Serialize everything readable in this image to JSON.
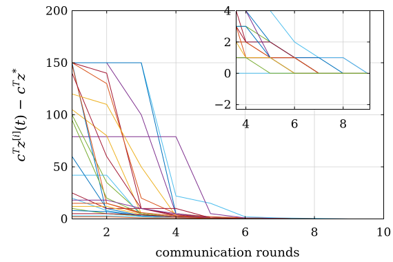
{
  "chart_data": [
    {
      "type": "line",
      "panel": "main",
      "xlabel": "communication rounds",
      "ylabel": "c^T z^[i](t) − c^T z^*",
      "xlim": [
        1,
        10
      ],
      "ylim": [
        0,
        200
      ],
      "x_ticks": [
        2,
        4,
        6,
        8,
        10
      ],
      "y_ticks": [
        0,
        50,
        100,
        150,
        200
      ],
      "x_tick_labels": [
        "2",
        "4",
        "6",
        "8",
        "10"
      ],
      "y_tick_labels": [
        "0",
        "50",
        "100",
        "150",
        "200"
      ],
      "grid": true,
      "series": [
        {
          "color": "#7e2f8e",
          "x": [
            1,
            2,
            3,
            4,
            5,
            6,
            7,
            8,
            9,
            10
          ],
          "y": [
            150,
            150,
            100,
            5,
            1,
            0.5,
            0.3,
            0.1,
            0,
            0
          ]
        },
        {
          "color": "#4dbeee",
          "x": [
            1,
            2,
            3,
            4,
            5,
            6,
            7,
            8,
            9,
            10
          ],
          "y": [
            150,
            150,
            150,
            22,
            15,
            2,
            1,
            0.5,
            0,
            0
          ]
        },
        {
          "color": "#0072bd",
          "x": [
            1,
            2,
            3,
            4,
            5,
            6,
            7,
            8,
            9,
            10
          ],
          "y": [
            150,
            150,
            150,
            5,
            2,
            1,
            0.5,
            0,
            0,
            0
          ]
        },
        {
          "color": "#a2142f",
          "x": [
            1,
            2,
            3,
            4,
            5,
            6,
            7,
            8,
            9,
            10
          ],
          "y": [
            150,
            140,
            10,
            3,
            2,
            1,
            0.5,
            0,
            0,
            0
          ]
        },
        {
          "color": "#d95319",
          "x": [
            1,
            2,
            3,
            4,
            5,
            6,
            7,
            8,
            9,
            10
          ],
          "y": [
            150,
            130,
            20,
            5,
            2,
            1,
            0.5,
            0,
            0,
            0
          ]
        },
        {
          "color": "#7e2f8e",
          "x": [
            1,
            2,
            3,
            4,
            5,
            6,
            7,
            8,
            9,
            10
          ],
          "y": [
            79,
            79,
            79,
            79,
            5,
            1,
            0.5,
            0,
            0,
            0
          ]
        },
        {
          "color": "#edb120",
          "x": [
            1,
            2,
            3,
            4,
            5,
            6,
            7,
            8,
            9,
            10
          ],
          "y": [
            105,
            80,
            5,
            2,
            1,
            0.5,
            0.2,
            0,
            0,
            0
          ]
        },
        {
          "color": "#77ac30",
          "x": [
            1,
            2,
            3,
            4,
            5,
            6,
            7,
            8,
            9,
            10
          ],
          "y": [
            100,
            35,
            5,
            2,
            1,
            0.5,
            0.2,
            0,
            0,
            0
          ]
        },
        {
          "color": "#4dbeee",
          "x": [
            1,
            2,
            3,
            4,
            5,
            6,
            7,
            8,
            9,
            10
          ],
          "y": [
            42,
            42,
            3,
            2,
            1,
            0.5,
            0.2,
            0,
            0,
            0
          ]
        },
        {
          "color": "#0072bd",
          "x": [
            1,
            2,
            3,
            4,
            5,
            6,
            7,
            8,
            9,
            10
          ],
          "y": [
            150,
            5,
            3,
            2,
            1,
            0.5,
            0.2,
            0,
            0,
            0
          ]
        },
        {
          "color": "#d95319",
          "x": [
            1,
            2,
            3,
            4,
            5,
            6,
            7,
            8,
            9,
            10
          ],
          "y": [
            148,
            15,
            5,
            2,
            1,
            0.5,
            0.2,
            0,
            0,
            0
          ]
        },
        {
          "color": "#a2142f",
          "x": [
            1,
            2,
            3,
            4,
            5,
            6,
            7,
            8,
            9,
            10
          ],
          "y": [
            140,
            60,
            10,
            4,
            1,
            0.5,
            0.2,
            0,
            0,
            0
          ]
        },
        {
          "color": "#edb120",
          "x": [
            1,
            2,
            3,
            4,
            5,
            6,
            7,
            8,
            9,
            10
          ],
          "y": [
            120,
            110,
            50,
            3,
            1,
            0.5,
            0.2,
            0,
            0,
            0
          ]
        },
        {
          "color": "#77ac30",
          "x": [
            1,
            2,
            3,
            4,
            5,
            6,
            7,
            8,
            9,
            10
          ],
          "y": [
            95,
            20,
            5,
            2,
            1,
            0.5,
            0.2,
            0,
            0,
            0
          ]
        },
        {
          "color": "#0072bd",
          "x": [
            1,
            2,
            3,
            4,
            5,
            6,
            7,
            8,
            9,
            10
          ],
          "y": [
            60,
            10,
            3,
            2,
            1,
            0.5,
            0.2,
            0,
            0,
            0
          ]
        },
        {
          "color": "#a2142f",
          "x": [
            1,
            2,
            3,
            4,
            5,
            6,
            7,
            8,
            9,
            10
          ],
          "y": [
            25,
            10,
            10,
            10,
            1,
            0.5,
            0.2,
            0,
            0,
            0
          ]
        },
        {
          "color": "#4dbeee",
          "x": [
            1,
            2,
            3,
            4,
            5,
            6,
            7,
            8,
            9,
            10
          ],
          "y": [
            20,
            8,
            3,
            2,
            1,
            0.5,
            0.2,
            0,
            0,
            0
          ]
        },
        {
          "color": "#7e2f8e",
          "x": [
            1,
            2,
            3,
            4,
            5,
            6,
            7,
            8,
            9,
            10
          ],
          "y": [
            18,
            18,
            10,
            5,
            1,
            0.5,
            0.2,
            0,
            0,
            0
          ]
        },
        {
          "color": "#d95319",
          "x": [
            1,
            2,
            3,
            4,
            5,
            6,
            7,
            8,
            9,
            10
          ],
          "y": [
            15,
            15,
            6,
            3,
            1,
            0.5,
            0.2,
            0,
            0,
            0
          ]
        },
        {
          "color": "#edb120",
          "x": [
            1,
            2,
            3,
            4,
            5,
            6,
            7,
            8,
            9,
            10
          ],
          "y": [
            12,
            12,
            4,
            2,
            1,
            0.5,
            0.2,
            0,
            0,
            0
          ]
        },
        {
          "color": "#77ac30",
          "x": [
            1,
            2,
            3,
            4,
            5,
            6,
            7,
            8,
            9,
            10
          ],
          "y": [
            10,
            5,
            3,
            2,
            1,
            0.5,
            0.2,
            0,
            0,
            0
          ]
        },
        {
          "color": "#0072bd",
          "x": [
            1,
            2,
            3,
            4,
            5,
            6,
            7,
            8,
            9,
            10
          ],
          "y": [
            8,
            7,
            3,
            2,
            1,
            0.5,
            0.2,
            0,
            0,
            0
          ]
        },
        {
          "color": "#a2142f",
          "x": [
            1,
            2,
            3,
            4,
            5,
            6,
            7,
            8,
            9,
            10
          ],
          "y": [
            5,
            5,
            4,
            2,
            1,
            0.5,
            0.2,
            0,
            0,
            0
          ]
        },
        {
          "color": "#4dbeee",
          "x": [
            1,
            2,
            3,
            4,
            5,
            6,
            7,
            8,
            9,
            10
          ],
          "y": [
            3,
            3,
            2,
            1,
            0.5,
            0.2,
            0.1,
            0,
            0,
            0
          ]
        },
        {
          "color": "#d95319",
          "x": [
            1,
            2,
            3,
            4,
            5,
            6,
            7,
            8,
            9,
            10
          ],
          "y": [
            2,
            2,
            1,
            1,
            0.5,
            0.2,
            0.1,
            0,
            0,
            0
          ]
        }
      ]
    },
    {
      "type": "line",
      "panel": "inset",
      "xlim": [
        3.6,
        9.1
      ],
      "ylim": [
        -2.3,
        4
      ],
      "x_ticks": [
        4,
        6,
        8
      ],
      "y_ticks": [
        -2,
        0,
        2,
        4
      ],
      "x_tick_labels": [
        "4",
        "6",
        "8"
      ],
      "y_tick_labels": [
        "−2",
        "0",
        "2",
        "4"
      ],
      "grid": true,
      "series": [
        {
          "color": "#7e2f8e",
          "x": [
            3.6,
            4,
            5,
            6,
            7,
            8,
            9
          ],
          "y": [
            1,
            1,
            1,
            1,
            1,
            1,
            0
          ]
        },
        {
          "color": "#4dbeee",
          "x": [
            3.6,
            4,
            5,
            6,
            7,
            8,
            9
          ],
          "y": [
            4,
            4,
            4,
            2,
            1,
            1,
            0
          ]
        },
        {
          "color": "#4dbeee",
          "x": [
            3.6,
            4,
            5,
            6,
            7,
            8,
            9
          ],
          "y": [
            1,
            1,
            1,
            1,
            0,
            0,
            0
          ]
        },
        {
          "color": "#0072bd",
          "x": [
            3.6,
            4,
            5,
            6,
            7,
            8,
            9
          ],
          "y": [
            2,
            2,
            2,
            1,
            0,
            0,
            0
          ]
        },
        {
          "color": "#a2142f",
          "x": [
            3.6,
            4,
            5,
            6,
            7,
            8,
            9
          ],
          "y": [
            3,
            2,
            1,
            1,
            0,
            0,
            0
          ]
        },
        {
          "color": "#d95319",
          "x": [
            3.6,
            4,
            5,
            6,
            7,
            8,
            9
          ],
          "y": [
            2,
            2,
            1,
            0,
            0,
            0,
            0
          ]
        },
        {
          "color": "#edb120",
          "x": [
            3.6,
            4,
            5,
            6,
            7,
            8,
            9
          ],
          "y": [
            1,
            1,
            1,
            1,
            0,
            0,
            0
          ]
        },
        {
          "color": "#77ac30",
          "x": [
            3.6,
            4,
            5,
            6,
            7,
            8,
            9
          ],
          "y": [
            3,
            3,
            2,
            1,
            0,
            0,
            0
          ]
        },
        {
          "color": "#0072bd",
          "x": [
            3.6,
            4,
            5,
            6,
            7,
            8,
            9
          ],
          "y": [
            4,
            4,
            2,
            1,
            1,
            0,
            0
          ]
        },
        {
          "color": "#a2142f",
          "x": [
            3.6,
            4,
            5,
            6,
            7,
            8,
            9
          ],
          "y": [
            4,
            2,
            2,
            1,
            0,
            0,
            0
          ]
        },
        {
          "color": "#7e2f8e",
          "x": [
            3.6,
            4,
            5,
            6,
            7,
            8,
            9
          ],
          "y": [
            4,
            4,
            1,
            1,
            0,
            0,
            0
          ]
        },
        {
          "color": "#d95319",
          "x": [
            3.6,
            4,
            5,
            6,
            7,
            8,
            9
          ],
          "y": [
            3,
            1,
            1,
            1,
            0,
            0,
            0
          ]
        },
        {
          "color": "#4dbeee",
          "x": [
            3.6,
            4,
            5,
            6,
            7,
            8,
            9
          ],
          "y": [
            0,
            0,
            0,
            0,
            0,
            0,
            0
          ]
        },
        {
          "color": "#7e2f8e",
          "x": [
            3.6,
            4,
            5,
            6,
            7,
            8,
            9
          ],
          "y": [
            1,
            1,
            1,
            0,
            0,
            0,
            0
          ]
        },
        {
          "color": "#0072bd",
          "x": [
            3.6,
            4,
            5,
            6,
            7,
            8,
            9
          ],
          "y": [
            3,
            3,
            1,
            0,
            0,
            0,
            0
          ]
        },
        {
          "color": "#edb120",
          "x": [
            3.6,
            4,
            5,
            6,
            7,
            8,
            9
          ],
          "y": [
            2,
            1,
            1,
            0,
            0,
            0,
            0
          ]
        },
        {
          "color": "#77ac30",
          "x": [
            3.6,
            4,
            5,
            6,
            7,
            8,
            9
          ],
          "y": [
            1,
            1,
            0,
            0,
            0,
            0,
            0
          ]
        }
      ]
    }
  ]
}
